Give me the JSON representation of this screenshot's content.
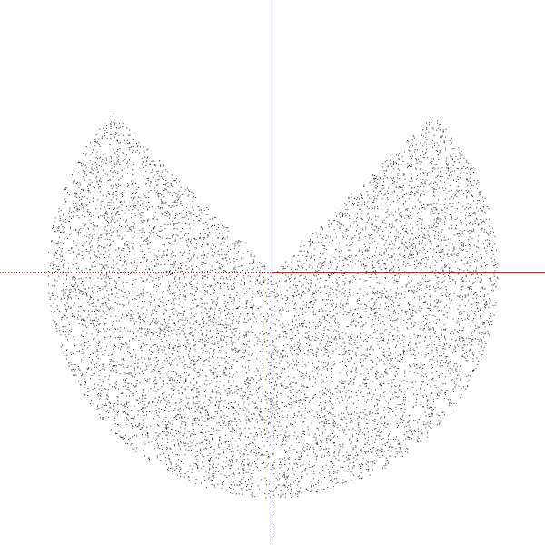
{
  "viewport": {
    "background": "#ffffff"
  },
  "axes": {
    "x_axis_color": "#ff0000",
    "y_axis_color": "#0000ff",
    "negative_style": "dotted",
    "positive_style": "solid"
  },
  "point_cloud": {
    "point_color": "#000000",
    "shape": "disk with a wedge removed, opening upward",
    "wedge_half_angle_deg": 45,
    "approx_point_count": 9000
  }
}
